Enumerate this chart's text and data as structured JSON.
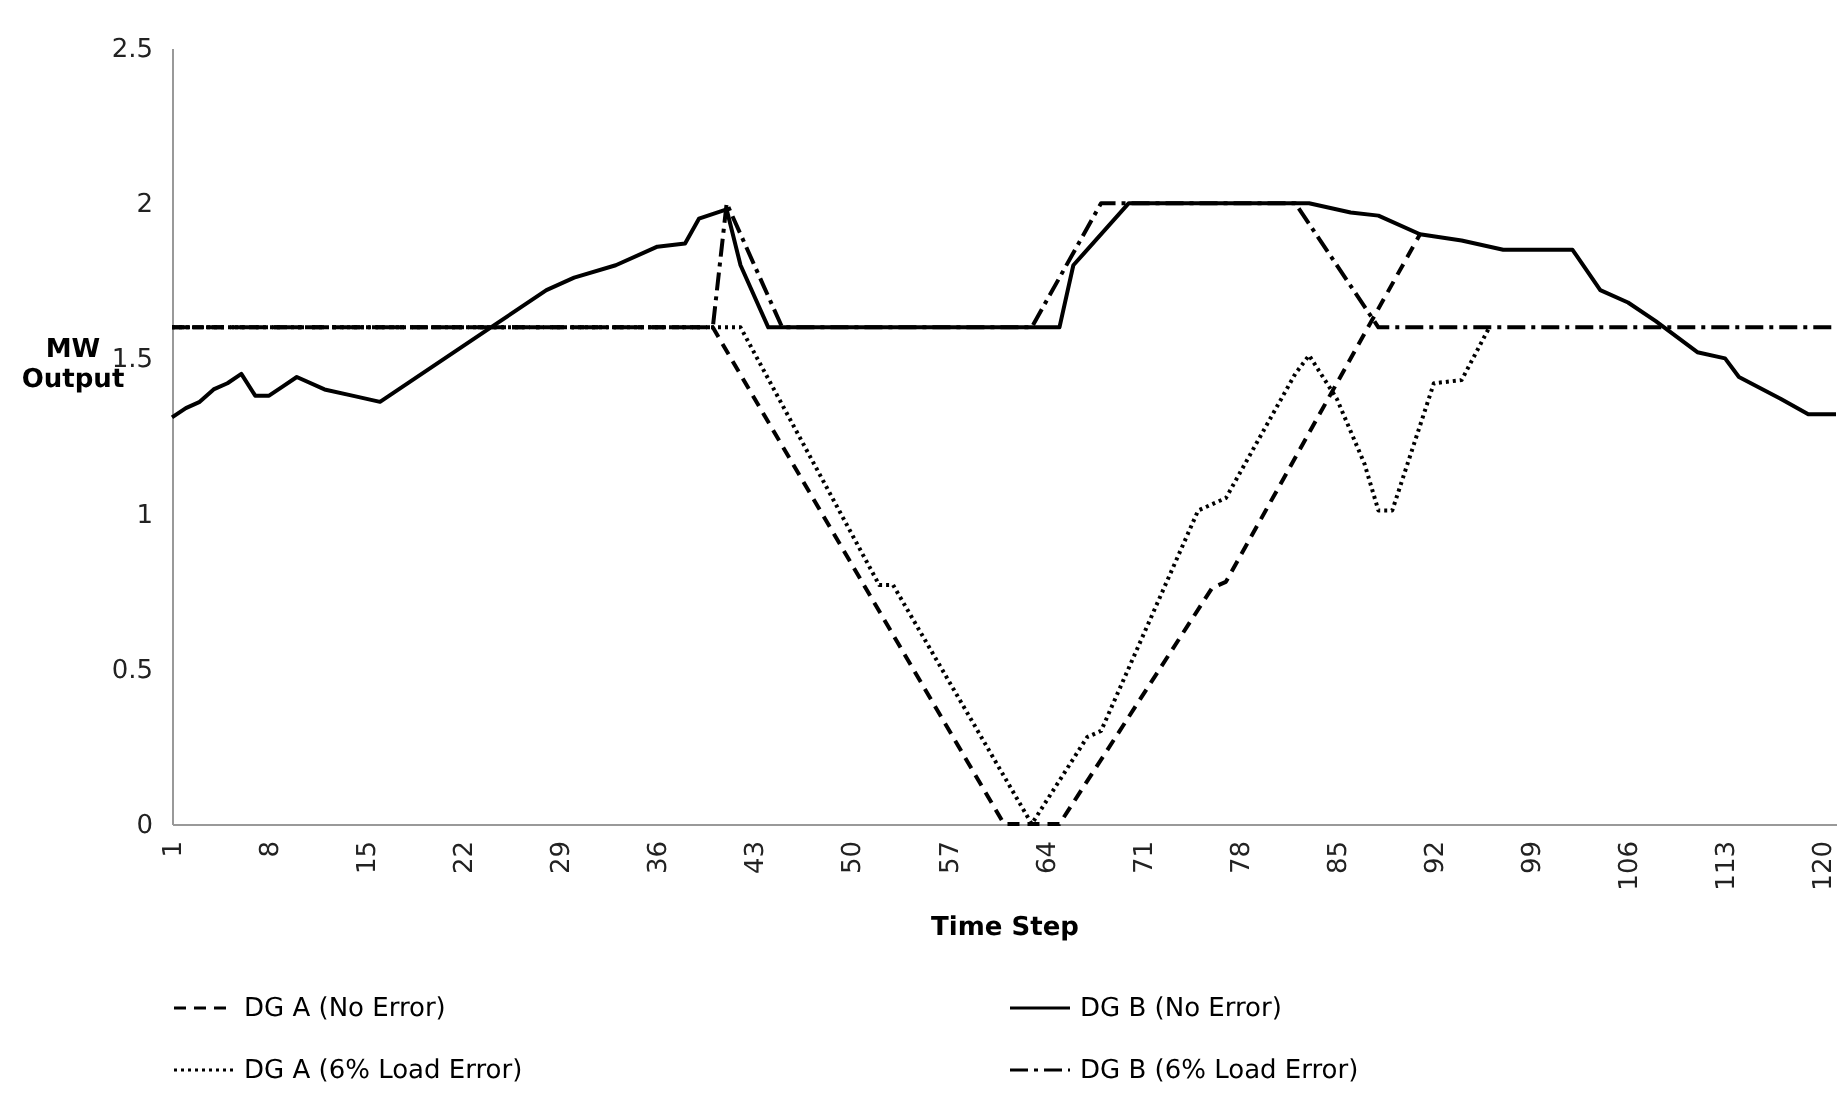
{
  "chart_data": {
    "type": "line",
    "xlabel": "Time Step",
    "ylabel": "MW Output",
    "xlim": [
      1,
      121
    ],
    "xticks": [
      1,
      8,
      15,
      22,
      29,
      36,
      43,
      50,
      57,
      64,
      71,
      78,
      85,
      92,
      99,
      106,
      113,
      120
    ],
    "ylim": [
      0,
      2.5
    ],
    "yticks": [
      0,
      0.5,
      1,
      1.5,
      2,
      2.5
    ],
    "grid": false,
    "legend": "bottom",
    "marker": "none",
    "series": [
      {
        "name": "DG A (No Error)",
        "color": "#000000",
        "line_style": "dashed",
        "x": [
          1,
          40,
          61,
          65,
          76,
          77,
          91
        ],
        "values": [
          1.6,
          1.6,
          0,
          0,
          0.76,
          0.78,
          1.9
        ]
      },
      {
        "name": "DG B (No Error)",
        "color": "#000000",
        "line_style": "solid",
        "x": [
          1,
          2,
          3,
          4,
          5,
          6,
          7,
          8,
          9,
          10,
          12,
          14,
          16,
          20,
          24,
          28,
          30,
          33,
          36,
          38,
          39,
          41,
          42,
          44,
          65,
          66,
          70,
          83,
          86,
          88,
          91,
          94,
          97,
          102,
          104,
          106,
          108,
          111,
          113,
          114,
          117,
          119,
          121
        ],
        "values": [
          1.31,
          1.34,
          1.36,
          1.4,
          1.42,
          1.45,
          1.38,
          1.38,
          1.41,
          1.44,
          1.4,
          1.38,
          1.36,
          1.48,
          1.6,
          1.72,
          1.76,
          1.8,
          1.86,
          1.87,
          1.95,
          1.98,
          1.8,
          1.6,
          1.6,
          1.8,
          2,
          2,
          1.97,
          1.96,
          1.9,
          1.88,
          1.85,
          1.85,
          1.72,
          1.68,
          1.62,
          1.52,
          1.5,
          1.44,
          1.37,
          1.32,
          1.32
        ]
      },
      {
        "name": "DG A (6% Load Error)",
        "color": "#000000",
        "line_style": "dotted",
        "x": [
          1,
          42,
          52,
          53,
          63,
          67,
          68,
          75,
          77,
          82,
          83,
          85,
          87,
          88,
          89,
          92,
          94,
          96
        ],
        "values": [
          1.6,
          1.6,
          0.77,
          0.77,
          0,
          0.28,
          0.3,
          1.01,
          1.05,
          1.45,
          1.51,
          1.37,
          1.16,
          1.01,
          1.01,
          1.42,
          1.43,
          1.6
        ]
      },
      {
        "name": "DG B (6% Load Error)",
        "color": "#000000",
        "line_style": "dashdot",
        "x": [
          1,
          40,
          41,
          45,
          63,
          68,
          82,
          88,
          121
        ],
        "values": [
          1.6,
          1.6,
          2,
          1.6,
          1.6,
          2,
          2,
          1.6,
          1.6
        ]
      }
    ]
  }
}
